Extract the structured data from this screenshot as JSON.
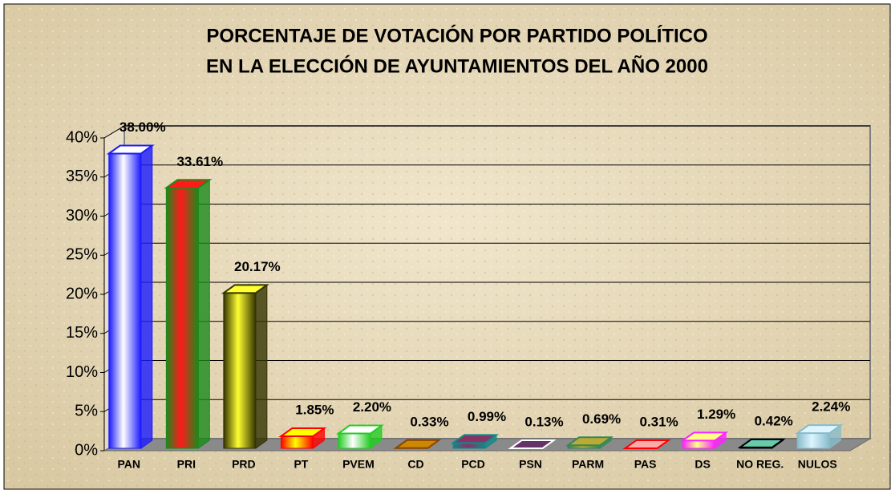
{
  "chart_data": {
    "type": "bar3d",
    "title": [
      "PORCENTAJE DE VOTACIÓN POR PARTIDO POLÍTICO",
      "EN LA ELECCIÓN DE AYUNTAMIENTOS DEL AÑO 2000"
    ],
    "categories": [
      "PAN",
      "PRI",
      "PRD",
      "PT",
      "PVEM",
      "CD",
      "PCD",
      "PSN",
      "PARM",
      "PAS",
      "DS",
      "NO REG.",
      "NULOS"
    ],
    "values": [
      38.0,
      33.61,
      20.17,
      1.85,
      2.2,
      0.33,
      0.99,
      0.13,
      0.69,
      0.31,
      1.29,
      0.42,
      2.24
    ],
    "value_labels": [
      "38.00%",
      "33.61%",
      "20.17%",
      "1.85%",
      "2.20%",
      "0.33%",
      "0.99%",
      "0.13%",
      "0.69%",
      "0.31%",
      "1.29%",
      "0.42%",
      "2.24%"
    ],
    "colors": [
      [
        "#ffffff",
        "#1a1aff"
      ],
      [
        "#ff1a1a",
        "#1a8a1a"
      ],
      [
        "#ffff33",
        "#333300"
      ],
      [
        "#ffff00",
        "#ff0000"
      ],
      [
        "#ffffff",
        "#22cc22"
      ],
      [
        "#cc8800",
        "#884400"
      ],
      [
        "#883366",
        "#118888"
      ],
      [
        "#663366",
        "#ffffff"
      ],
      [
        "#bbaa33",
        "#338855"
      ],
      [
        "#ffaaaa",
        "#ff0000"
      ],
      [
        "#ffff88",
        "#ff22ff"
      ],
      [
        "#66ccaa",
        "#000000"
      ],
      [
        "#ddf5ff",
        "#88bbcc"
      ]
    ],
    "ylim": [
      0,
      40
    ],
    "yticks": [
      {
        "value": 0,
        "label": "0%"
      },
      {
        "value": 5,
        "label": "5%"
      },
      {
        "value": 10,
        "label": "10%"
      },
      {
        "value": 15,
        "label": "15%"
      },
      {
        "value": 20,
        "label": "20%"
      },
      {
        "value": 25,
        "label": "25%"
      },
      {
        "value": 30,
        "label": "30%"
      },
      {
        "value": 35,
        "label": "35%"
      },
      {
        "value": 40,
        "label": "40%"
      }
    ],
    "grid": true
  }
}
